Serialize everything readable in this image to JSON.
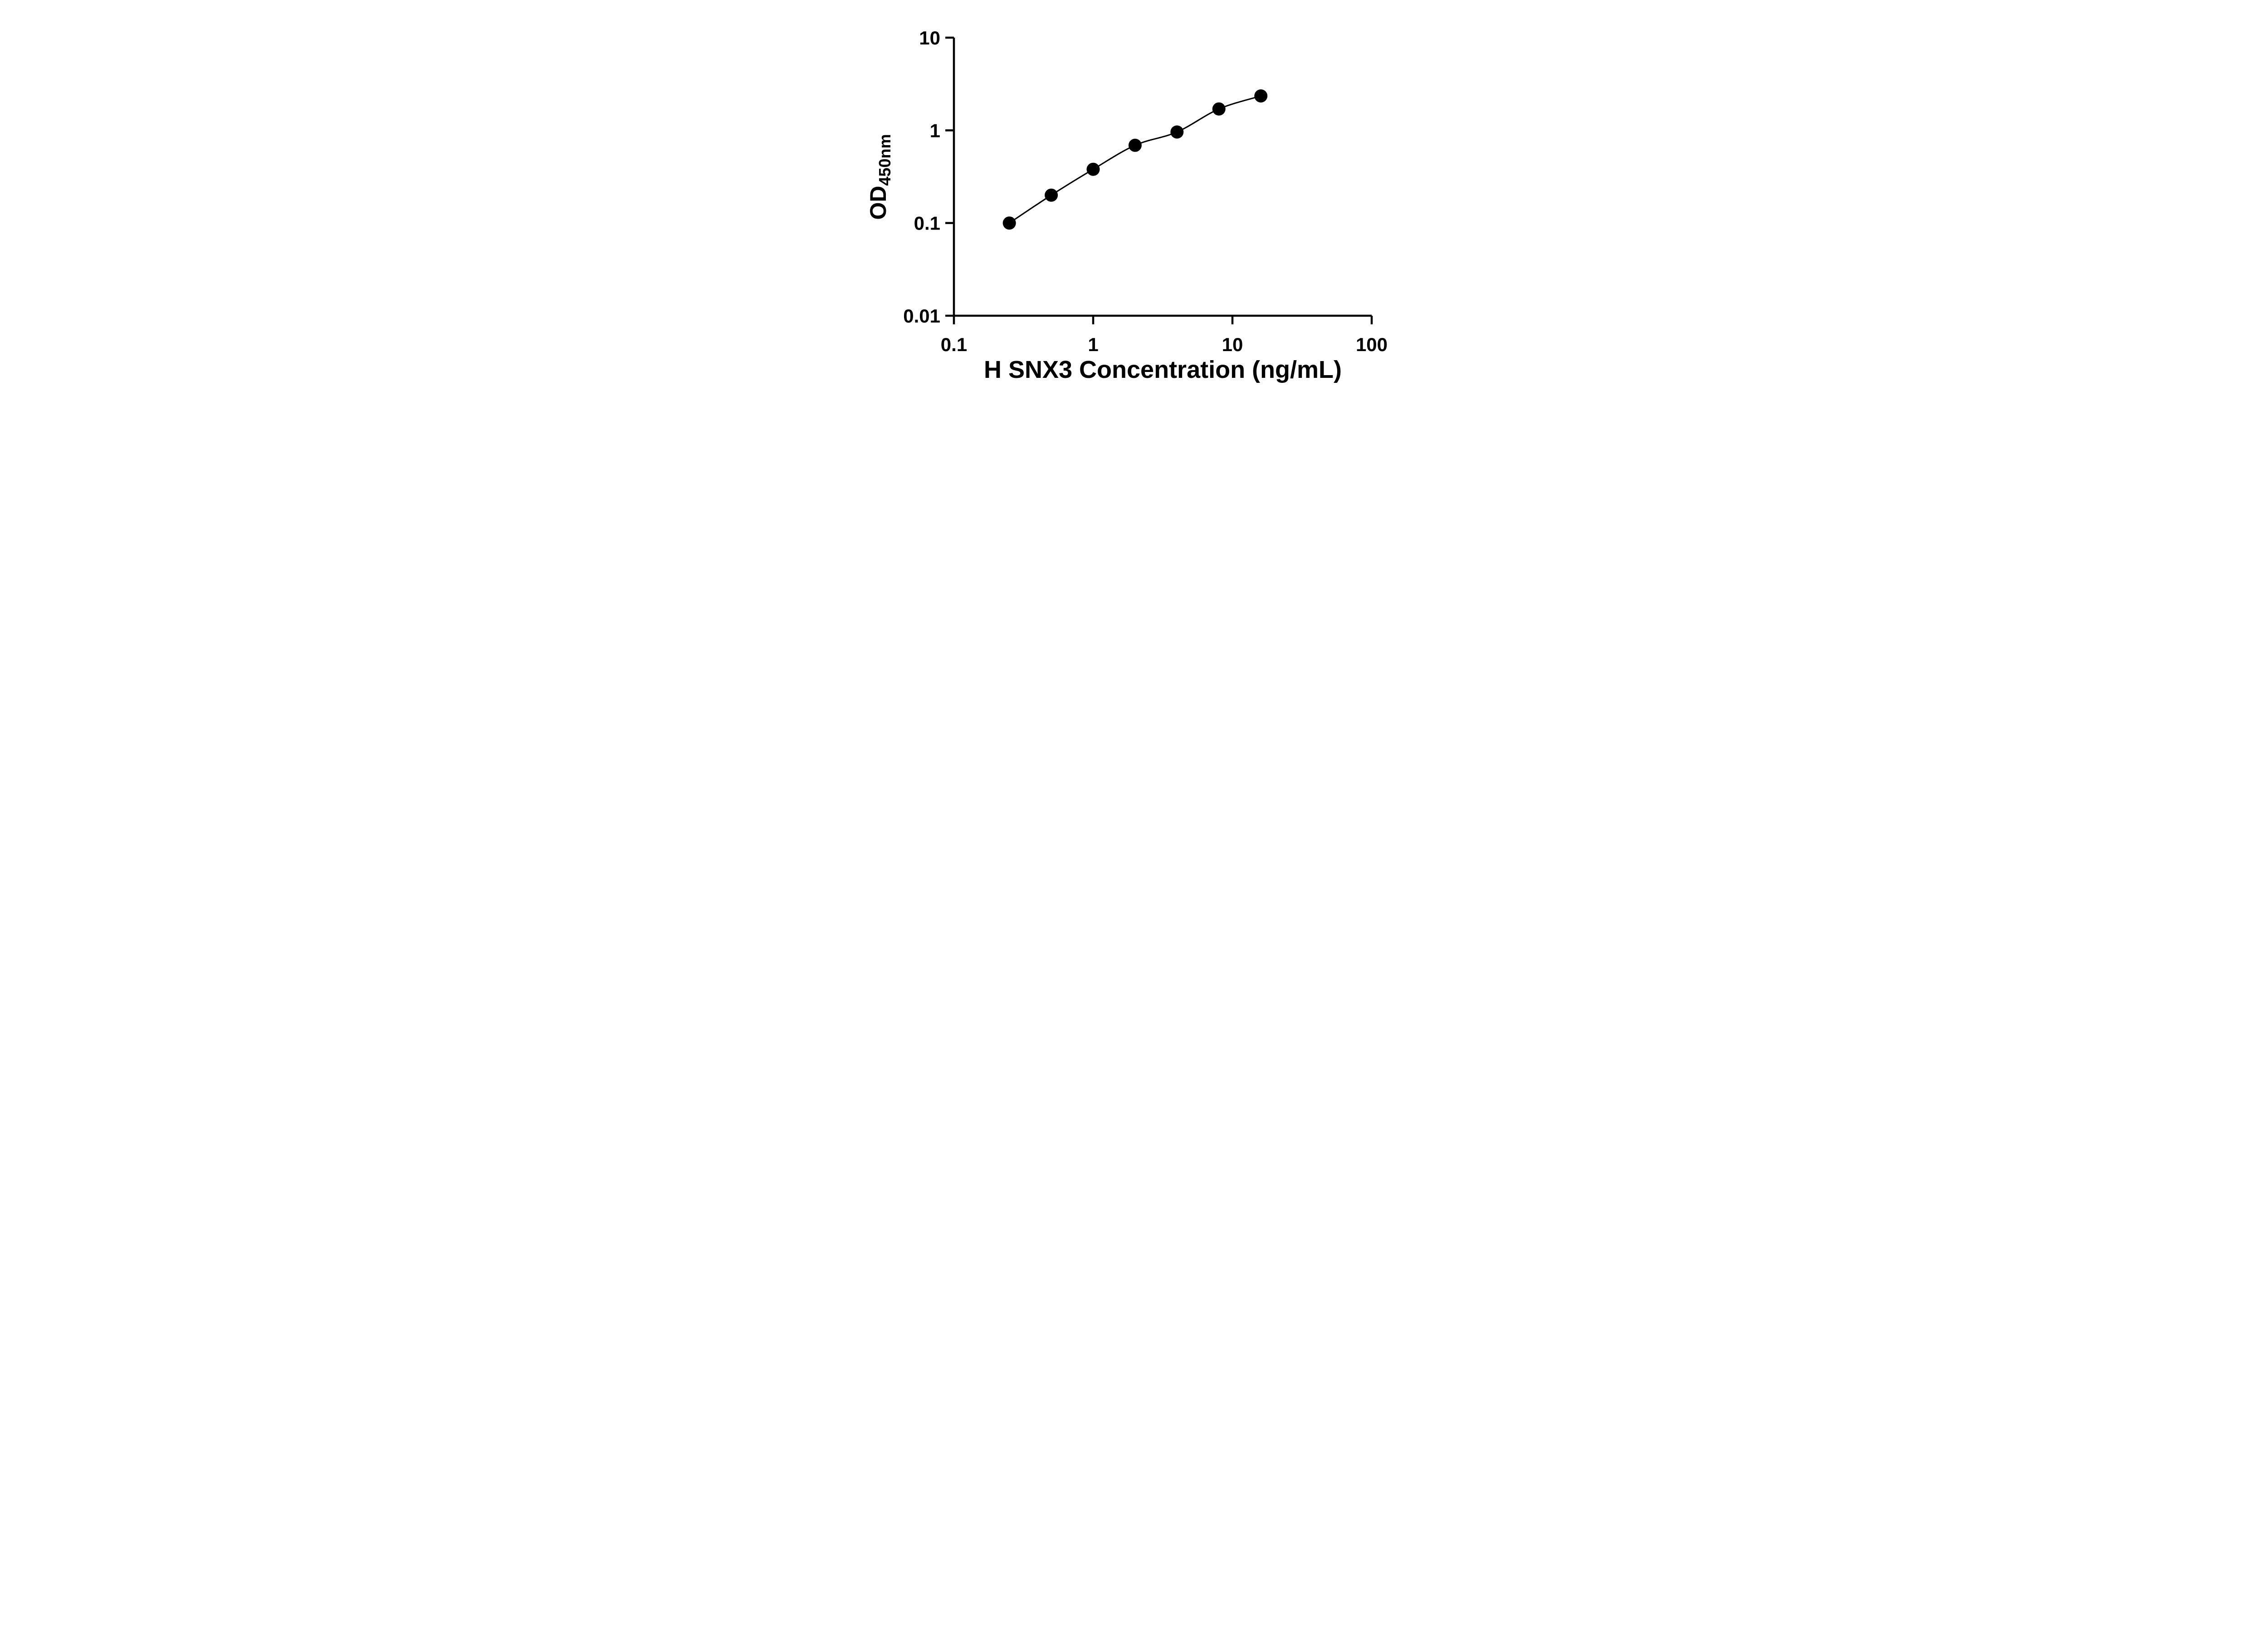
{
  "figure": {
    "background": "#ffffff"
  },
  "chart_data": {
    "type": "scatter",
    "title": "",
    "xlabel": "H SNX3 Concentration (ng/mL)",
    "ylabel": "OD450nm",
    "ylabel_main": "OD",
    "ylabel_sub": "450nm",
    "x_scale": "log",
    "y_scale": "log",
    "xlim": [
      0.1,
      100
    ],
    "ylim": [
      0.01,
      10
    ],
    "x_ticks": [
      0.1,
      1,
      10,
      100
    ],
    "x_tick_labels": [
      "0.1",
      "1",
      "10",
      "100"
    ],
    "y_ticks": [
      10,
      1,
      0.1,
      0.01
    ],
    "y_tick_labels": [
      "10",
      "1",
      "0.1",
      "0.01"
    ],
    "grid": false,
    "legend": "none",
    "series": [
      {
        "x": [
          0.25,
          0.5,
          1,
          2,
          4,
          8,
          16
        ],
        "y": [
          0.1,
          0.2,
          0.38,
          0.69,
          0.96,
          1.7,
          2.35
        ],
        "marker": "circle",
        "color": "#000000",
        "line": "smooth-fit"
      }
    ],
    "style": {
      "axis_color": "#000000",
      "marker_color": "#000000",
      "curve_color": "#000000",
      "background": "#ffffff"
    }
  }
}
